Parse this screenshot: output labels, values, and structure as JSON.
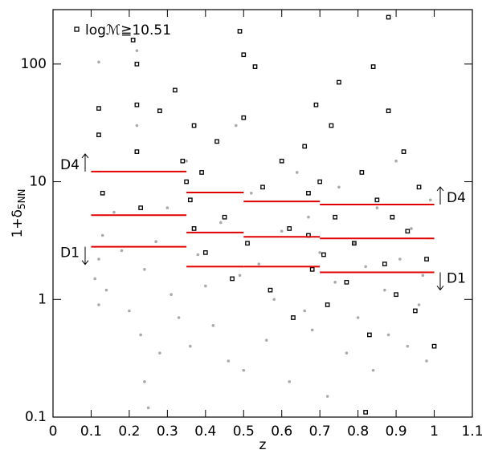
{
  "chart_data": {
    "type": "scatter",
    "xlabel": "z",
    "ylabel": "1+δ",
    "ylabel_sub": "5NN",
    "yscale": "log",
    "xlim": [
      0,
      1.1
    ],
    "ylim": [
      0.1,
      290
    ],
    "xticks": [
      0,
      0.1,
      0.2,
      0.3,
      0.4,
      0.5,
      0.6,
      0.7,
      0.8,
      0.9,
      1,
      1.1
    ],
    "yticks": [
      0.1,
      1,
      10,
      100
    ],
    "series": [
      {
        "color": "#aaaaaa",
        "marker": "circle",
        "x": [
          0.11,
          0.12,
          0.12,
          0.13,
          0.12,
          0.14,
          0.16,
          0.18,
          0.2,
          0.22,
          0.22,
          0.23,
          0.24,
          0.24,
          0.25,
          0.27,
          0.28,
          0.3,
          0.31,
          0.33,
          0.35,
          0.36,
          0.38,
          0.4,
          0.42,
          0.44,
          0.46,
          0.48,
          0.49,
          0.5,
          0.52,
          0.54,
          0.56,
          0.58,
          0.6,
          0.62,
          0.64,
          0.66,
          0.67,
          0.68,
          0.7,
          0.72,
          0.74,
          0.75,
          0.77,
          0.79,
          0.8,
          0.82,
          0.84,
          0.85,
          0.87,
          0.88,
          0.9,
          0.91,
          0.93,
          0.94,
          0.96,
          0.97,
          0.98,
          0.99
        ],
        "values": [
          1.5,
          2.2,
          0.9,
          3.5,
          104,
          1.2,
          5.5,
          2.6,
          0.8,
          30,
          130,
          0.5,
          0.2,
          1.8,
          0.12,
          3.1,
          0.35,
          6,
          1.1,
          0.7,
          15,
          0.4,
          2.4,
          1.3,
          0.6,
          4.5,
          0.3,
          30,
          1.6,
          0.25,
          8,
          2.0,
          0.45,
          1.0,
          3.8,
          0.2,
          12,
          0.8,
          5,
          0.55,
          2.5,
          0.15,
          1.4,
          9,
          0.35,
          3,
          0.7,
          1.9,
          0.25,
          6,
          1.2,
          0.5,
          15,
          2.2,
          0.4,
          4,
          0.9,
          1.6,
          0.3,
          7
        ]
      },
      {
        "name": "logℳ≧10.51",
        "color": "#000000",
        "marker": "square",
        "x": [
          0.12,
          0.12,
          0.13,
          0.21,
          0.22,
          0.22,
          0.22,
          0.23,
          0.28,
          0.32,
          0.34,
          0.35,
          0.36,
          0.37,
          0.37,
          0.39,
          0.4,
          0.43,
          0.45,
          0.47,
          0.49,
          0.5,
          0.5,
          0.51,
          0.53,
          0.55,
          0.57,
          0.6,
          0.62,
          0.63,
          0.66,
          0.67,
          0.67,
          0.68,
          0.69,
          0.7,
          0.71,
          0.72,
          0.73,
          0.74,
          0.75,
          0.77,
          0.79,
          0.81,
          0.83,
          0.84,
          0.85,
          0.87,
          0.88,
          0.88,
          0.89,
          0.9,
          0.92,
          0.93,
          0.95,
          0.96,
          0.98,
          1.0,
          0.82
        ],
        "values": [
          42,
          25,
          8,
          160,
          100,
          45,
          18,
          6,
          40,
          60,
          15,
          10,
          7,
          30,
          4,
          12,
          2.5,
          22,
          5,
          1.5,
          190,
          120,
          35,
          3,
          95,
          9,
          1.2,
          15,
          4,
          0.7,
          20,
          8,
          3.5,
          1.8,
          45,
          10,
          2.4,
          0.9,
          30,
          5,
          70,
          1.4,
          3,
          12,
          0.5,
          95,
          7,
          2,
          250,
          40,
          5,
          1.1,
          18,
          3.8,
          0.8,
          9,
          2.2,
          0.4,
          0.11
        ]
      }
    ],
    "thresholds": {
      "color": "#e00000",
      "z_edges": [
        0.1,
        0.35,
        0.5,
        0.7,
        1.0
      ],
      "lines": [
        [
          12.2,
          8.1,
          6.8,
          6.4
        ],
        [
          5.2,
          3.7,
          3.4,
          3.3
        ],
        [
          2.8,
          1.9,
          1.9,
          1.7
        ]
      ]
    },
    "annotations": [
      "D4",
      "D1",
      "D4",
      "D1"
    ]
  }
}
